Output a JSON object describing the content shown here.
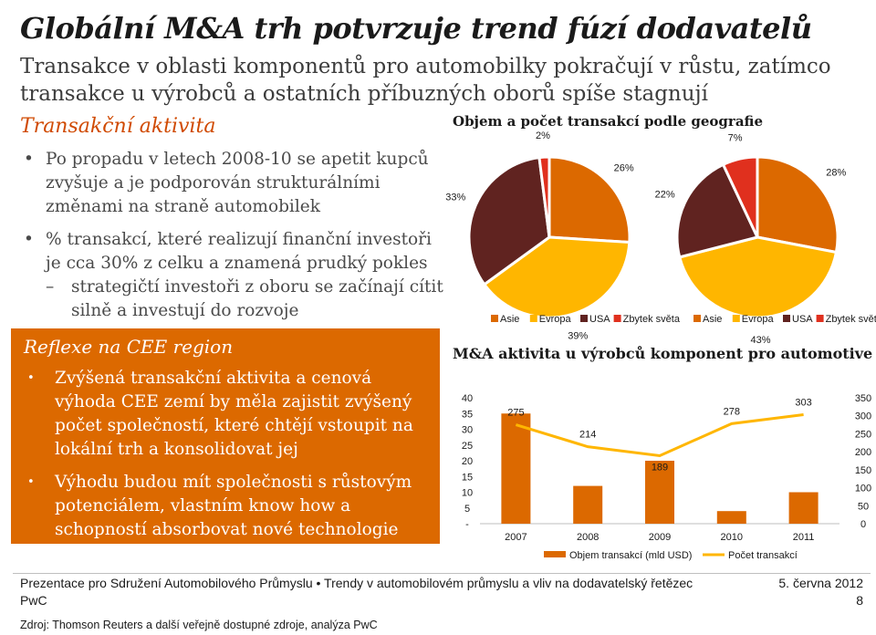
{
  "title": "Globální M&A trh potvrzuje trend fúzí dodavatelů",
  "subtitle": "Transakce v oblasti komponentů pro automobilky pokračují v růstu, zatímco transakce u výrobců a ostatních příbuzných oborů spíše stagnují",
  "left": {
    "section_title": "Transakční aktivita",
    "bullets": [
      {
        "text": "Po propadu v letech 2008-10 se apetit kupců zvyšuje a je podporován strukturálními změnami na straně automobilek"
      },
      {
        "text": "% transakcí, které realizují finanční investoři je cca 30% z celku a znamená prudký pokles",
        "sub": "strategičtí investoři z oboru se začínají cítit silně a investují do rozvoje"
      }
    ],
    "bullet_glyph": "•",
    "dash_glyph": "–"
  },
  "panel": {
    "title": "Reflexe na CEE region",
    "bullets": [
      "Zvýšená transakční aktivita a cenová výhoda CEE zemí by měla zajistit zvýšený počet společností, které chtějí vstoupit na lokální trh a konsolidovat jej",
      "Výhodu budou mít společnosti s růstovým potenciálem, vlastním know how a schopností absorbovat nové technologie"
    ],
    "bullet_glyph": "•",
    "color": "#dc6900"
  },
  "chart_data": [
    {
      "type": "pie",
      "title": "Objem a počet transakcí podle geografie",
      "categories": [
        "Asie",
        "Evropa",
        "USA",
        "Zbytek světa"
      ],
      "colors": [
        "#dc6900",
        "#ffb600",
        "#602320",
        "#e0301e"
      ],
      "values": [
        26,
        39,
        33,
        2
      ],
      "labels": [
        "26%",
        "39%",
        "33%",
        "2%"
      ]
    },
    {
      "type": "pie",
      "categories": [
        "Asie",
        "Evropa",
        "USA",
        "Zbytek světa"
      ],
      "colors": [
        "#dc6900",
        "#ffb600",
        "#602320",
        "#e0301e"
      ],
      "values": [
        28,
        43,
        22,
        7
      ],
      "labels": [
        "28%",
        "43%",
        "22%",
        "7%"
      ]
    },
    {
      "type": "bar",
      "title": "M&A aktivita u výrobců komponent pro automotive",
      "categories": [
        "2007",
        "2008",
        "2009",
        "2010",
        "2011"
      ],
      "series": [
        {
          "name": "Objem transakcí (mld USD)",
          "type": "bar",
          "axis": "left",
          "color": "#dc6900",
          "values": [
            35,
            12,
            20,
            4,
            10
          ]
        },
        {
          "name": "Počet transakcí",
          "type": "line",
          "axis": "right",
          "color": "#ffb600",
          "values": [
            275,
            214,
            189,
            278,
            303
          ],
          "labels": [
            "275",
            "214",
            "189",
            "278",
            "303"
          ]
        }
      ],
      "y_left": {
        "min": 0,
        "max": 40,
        "ticks": [
          "-",
          "5",
          "10",
          "15",
          "20",
          "25",
          "30",
          "35",
          "40"
        ],
        "tick_values": [
          0,
          5,
          10,
          15,
          20,
          25,
          30,
          35,
          40
        ]
      },
      "y_right": {
        "min": 0,
        "max": 350,
        "ticks": [
          "0",
          "50",
          "100",
          "150",
          "200",
          "250",
          "300",
          "350"
        ],
        "tick_values": [
          0,
          50,
          100,
          150,
          200,
          250,
          300,
          350
        ]
      },
      "grid": false,
      "legend": "bottom"
    }
  ],
  "footer": {
    "presentation": "Prezentace pro Sdružení Automobilového Průmyslu • Trendy v automobilovém průmyslu a vliv na dodavatelský řetězec",
    "company": "PwC",
    "date": "5. června 2012",
    "page": "8",
    "source": "Zdroj: Thomson Reuters a další veřejně dostupné zdroje, analýza PwC"
  }
}
